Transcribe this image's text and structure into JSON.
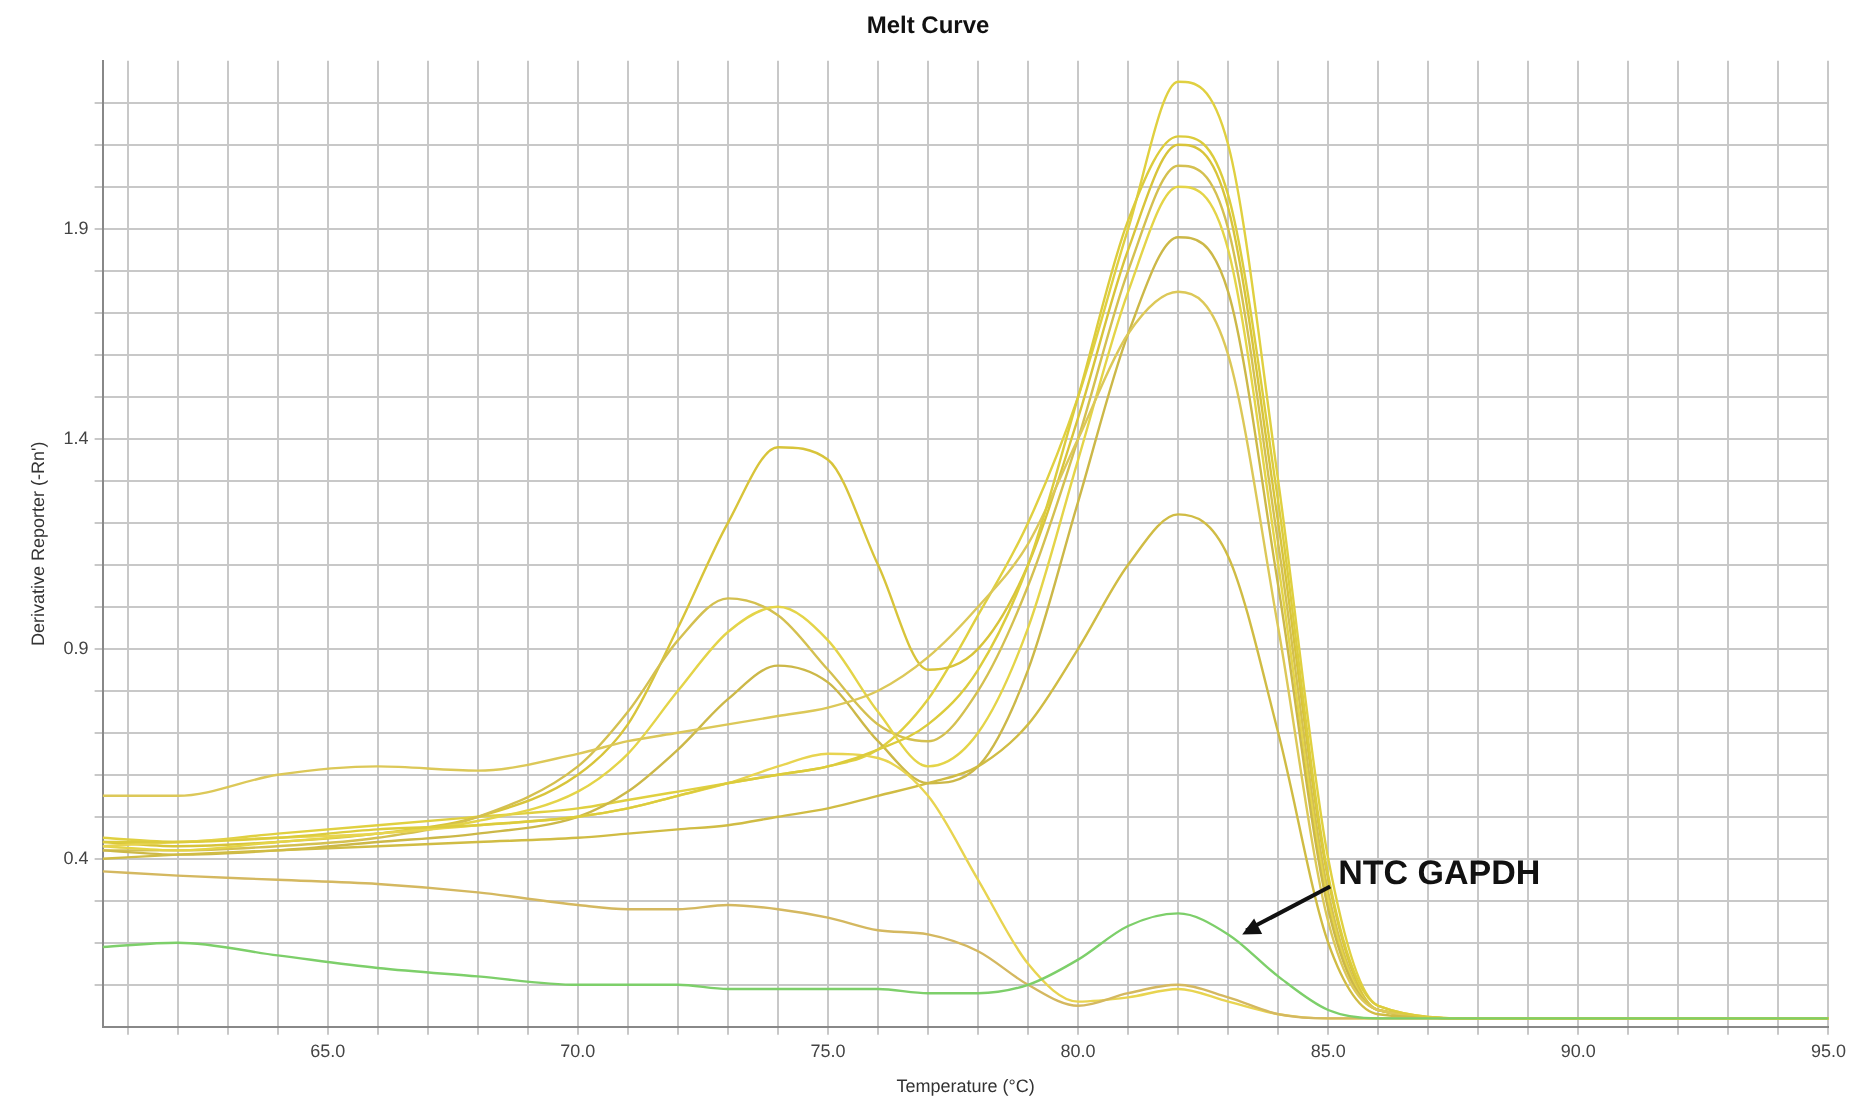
{
  "chart_data": {
    "type": "line",
    "title": "Melt Curve",
    "xlabel": "Temperature (°C)",
    "ylabel": "Derivative Reporter (-Rn')",
    "x": [
      60.5,
      62,
      64,
      66,
      68,
      70,
      71,
      72,
      73,
      74,
      75,
      76,
      77,
      78,
      79,
      80,
      81,
      82,
      83,
      84,
      85,
      86,
      88,
      90,
      92,
      95
    ],
    "series": [
      {
        "color": "#e0d040",
        "values": [
          0.45,
          0.44,
          0.46,
          0.48,
          0.5,
          0.52,
          0.54,
          0.56,
          0.58,
          0.6,
          0.62,
          0.66,
          0.78,
          0.98,
          1.2,
          1.5,
          1.9,
          2.25,
          2.1,
          1.3,
          0.4,
          0.05,
          0.02,
          0.02,
          0.02,
          0.02
        ]
      },
      {
        "color": "#d8c43a",
        "values": [
          0.44,
          0.43,
          0.44,
          0.46,
          0.5,
          0.6,
          0.72,
          0.95,
          1.2,
          1.38,
          1.35,
          1.1,
          0.85,
          0.9,
          1.1,
          1.45,
          1.85,
          2.1,
          1.95,
          1.2,
          0.35,
          0.04,
          0.02,
          0.02,
          0.02,
          0.02
        ]
      },
      {
        "color": "#d4c050",
        "values": [
          0.42,
          0.42,
          0.43,
          0.45,
          0.5,
          0.62,
          0.75,
          0.92,
          1.02,
          0.98,
          0.85,
          0.72,
          0.68,
          0.8,
          1.05,
          1.4,
          1.8,
          2.05,
          1.9,
          1.15,
          0.32,
          0.04,
          0.02,
          0.02,
          0.02,
          0.02
        ]
      },
      {
        "color": "#e4d448",
        "values": [
          0.43,
          0.42,
          0.44,
          0.46,
          0.49,
          0.56,
          0.65,
          0.8,
          0.94,
          1.0,
          0.92,
          0.75,
          0.62,
          0.7,
          0.95,
          1.35,
          1.75,
          2.0,
          1.85,
          1.1,
          0.3,
          0.04,
          0.02,
          0.02,
          0.02,
          0.02
        ]
      },
      {
        "color": "#ccb848",
        "values": [
          0.42,
          0.41,
          0.42,
          0.44,
          0.46,
          0.5,
          0.56,
          0.66,
          0.78,
          0.86,
          0.82,
          0.68,
          0.58,
          0.62,
          0.85,
          1.25,
          1.65,
          1.88,
          1.75,
          1.05,
          0.28,
          0.04,
          0.02,
          0.02,
          0.02,
          0.02
        ]
      },
      {
        "color": "#dcc858",
        "values": [
          0.55,
          0.55,
          0.6,
          0.62,
          0.61,
          0.65,
          0.68,
          0.7,
          0.72,
          0.74,
          0.76,
          0.8,
          0.88,
          1.0,
          1.15,
          1.4,
          1.65,
          1.75,
          1.6,
          0.95,
          0.25,
          0.04,
          0.02,
          0.02,
          0.02,
          0.02
        ]
      },
      {
        "color": "#d0bc44",
        "values": [
          0.4,
          0.41,
          0.42,
          0.43,
          0.44,
          0.45,
          0.46,
          0.47,
          0.48,
          0.5,
          0.52,
          0.55,
          0.58,
          0.62,
          0.72,
          0.9,
          1.1,
          1.22,
          1.12,
          0.7,
          0.2,
          0.03,
          0.02,
          0.02,
          0.02,
          0.02
        ]
      },
      {
        "color": "#e8d450",
        "values": [
          0.43,
          0.44,
          0.45,
          0.46,
          0.48,
          0.5,
          0.52,
          0.55,
          0.58,
          0.62,
          0.65,
          0.64,
          0.55,
          0.35,
          0.15,
          0.06,
          0.07,
          0.09,
          0.06,
          0.03,
          0.02,
          0.02,
          0.02,
          0.02,
          0.02,
          0.02
        ]
      },
      {
        "color": "#d4b860",
        "values": [
          0.37,
          0.36,
          0.35,
          0.34,
          0.32,
          0.29,
          0.28,
          0.28,
          0.29,
          0.28,
          0.26,
          0.23,
          0.22,
          0.18,
          0.1,
          0.05,
          0.08,
          0.1,
          0.07,
          0.03,
          0.02,
          0.02,
          0.02,
          0.02,
          0.02,
          0.02
        ]
      },
      {
        "color": "#dccc3c",
        "values": [
          0.44,
          0.44,
          0.45,
          0.47,
          0.48,
          0.5,
          0.52,
          0.55,
          0.58,
          0.6,
          0.62,
          0.66,
          0.72,
          0.85,
          1.1,
          1.5,
          1.92,
          2.12,
          1.98,
          1.25,
          0.36,
          0.05,
          0.02,
          0.02,
          0.02,
          0.02
        ]
      },
      {
        "color": "#7dcf6a",
        "values": [
          0.19,
          0.2,
          0.17,
          0.14,
          0.12,
          0.1,
          0.1,
          0.1,
          0.09,
          0.09,
          0.09,
          0.09,
          0.08,
          0.08,
          0.1,
          0.16,
          0.24,
          0.27,
          0.22,
          0.12,
          0.04,
          0.02,
          0.02,
          0.02,
          0.02,
          0.02
        ]
      }
    ],
    "xlim": [
      60.5,
      95
    ],
    "xticks": [
      {
        "value": 61,
        "label": null
      },
      {
        "value": 62,
        "label": null
      },
      {
        "value": 63,
        "label": null
      },
      {
        "value": 64,
        "label": null
      },
      {
        "value": 65,
        "label": "65.0"
      },
      {
        "value": 66,
        "label": null
      },
      {
        "value": 67,
        "label": null
      },
      {
        "value": 68,
        "label": null
      },
      {
        "value": 69,
        "label": null
      },
      {
        "value": 70,
        "label": "70.0"
      },
      {
        "value": 71,
        "label": null
      },
      {
        "value": 72,
        "label": null
      },
      {
        "value": 73,
        "label": null
      },
      {
        "value": 74,
        "label": null
      },
      {
        "value": 75,
        "label": "75.0"
      },
      {
        "value": 76,
        "label": null
      },
      {
        "value": 77,
        "label": null
      },
      {
        "value": 78,
        "label": null
      },
      {
        "value": 79,
        "label": null
      },
      {
        "value": 80,
        "label": "80.0"
      },
      {
        "value": 81,
        "label": null
      },
      {
        "value": 82,
        "label": null
      },
      {
        "value": 83,
        "label": null
      },
      {
        "value": 84,
        "label": null
      },
      {
        "value": 85,
        "label": "85.0"
      },
      {
        "value": 86,
        "label": null
      },
      {
        "value": 87,
        "label": null
      },
      {
        "value": 88,
        "label": null
      },
      {
        "value": 89,
        "label": null
      },
      {
        "value": 90,
        "label": "90.0"
      },
      {
        "value": 91,
        "label": null
      },
      {
        "value": 92,
        "label": null
      },
      {
        "value": 93,
        "label": null
      },
      {
        "value": 94,
        "label": null
      },
      {
        "value": 95,
        "label": "95.0"
      }
    ],
    "ylim": [
      0,
      2.3
    ],
    "yticks": [
      {
        "value": 0.1,
        "label": null
      },
      {
        "value": 0.2,
        "label": null
      },
      {
        "value": 0.3,
        "label": null
      },
      0.4,
      {
        "value": 0.5,
        "label": null
      },
      {
        "value": 0.6,
        "label": null
      },
      {
        "value": 0.7,
        "label": null
      },
      {
        "value": 0.8,
        "label": null
      },
      0.9,
      {
        "value": 1.0,
        "label": null
      },
      {
        "value": 1.1,
        "label": null
      },
      {
        "value": 1.2,
        "label": null
      },
      {
        "value": 1.3,
        "label": null
      },
      1.4,
      {
        "value": 1.5,
        "label": null
      },
      {
        "value": 1.6,
        "label": null
      },
      {
        "value": 1.7,
        "label": null
      },
      {
        "value": 1.8,
        "label": null
      },
      1.9,
      {
        "value": 2.0,
        "label": null
      },
      {
        "value": 2.1,
        "label": null
      },
      {
        "value": 2.2,
        "label": null
      }
    ],
    "grid": true,
    "legend": false,
    "marker": "none",
    "line_style": "solid",
    "annotations": [
      {
        "text": "NTC GAPDH",
        "x": 83.2,
        "y": 0.21
      }
    ]
  }
}
